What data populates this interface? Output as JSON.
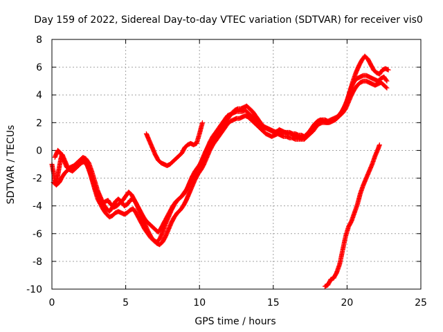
{
  "chart_data": {
    "type": "scatter",
    "title": "Day 159 of 2022, Sidereal Day-to-day VTEC variation (SDTVAR) for receiver vis0",
    "xlabel": "GPS time / hours",
    "ylabel": "SDTVAR / TECUs",
    "xlim": [
      0,
      25
    ],
    "ylim": [
      -10,
      8
    ],
    "x_ticks": [
      "0",
      "5",
      "10",
      "15",
      "20",
      "25"
    ],
    "y_ticks": [
      "-10",
      "-8",
      "-6",
      "-4",
      "-2",
      "0",
      "2",
      "4",
      "6",
      "8"
    ],
    "grid": true,
    "marker": "+",
    "color": "#ff0000",
    "series": [
      {
        "x": [
          0.0,
          0.1,
          0.2,
          0.3,
          0.4,
          0.5,
          0.6,
          0.7,
          0.9,
          1.1,
          1.3,
          1.5,
          1.7,
          1.9,
          2.1,
          2.3,
          2.5,
          2.7,
          2.9,
          3.1,
          3.3,
          3.5,
          3.7,
          3.9,
          4.1,
          4.3,
          4.5,
          4.7,
          4.9,
          5.1,
          5.3,
          5.5,
          5.7,
          5.9,
          6.1,
          6.3,
          6.5,
          6.7,
          6.9,
          7.1,
          7.3,
          7.5,
          7.7,
          7.9,
          8.1,
          8.3,
          8.5,
          8.7,
          8.9,
          9.1,
          9.3,
          9.5,
          9.7,
          9.9,
          10.1,
          10.3,
          10.5,
          10.7,
          10.9,
          11.1,
          11.3,
          11.5,
          11.7,
          11.9,
          12.1,
          12.3,
          12.5,
          12.7,
          12.9,
          13.1,
          13.3,
          13.5,
          13.7,
          13.9,
          14.1,
          14.3,
          14.5,
          14.7,
          14.9,
          15.1,
          15.3,
          15.5,
          15.7,
          15.9,
          16.1,
          16.3,
          16.5,
          16.7,
          16.9,
          17.1,
          17.3,
          17.5,
          17.7,
          17.9,
          18.1,
          18.3,
          18.5,
          18.7,
          18.9,
          19.1,
          19.3,
          19.5,
          19.7,
          19.9,
          20.1,
          20.3,
          20.5,
          20.7,
          20.9,
          21.1,
          21.3,
          21.5,
          21.7,
          21.9,
          22.1,
          22.3,
          22.5,
          22.7
        ],
        "y": [
          -1.0,
          -1.5,
          -2.2,
          -2.4,
          -1.8,
          -1.2,
          -0.6,
          -0.3,
          -0.8,
          -1.3,
          -1.2,
          -1.1,
          -0.9,
          -0.7,
          -0.5,
          -0.6,
          -0.9,
          -1.5,
          -2.2,
          -2.9,
          -3.4,
          -3.9,
          -4.2,
          -4.4,
          -4.1,
          -3.7,
          -3.5,
          -3.7,
          -4.0,
          -3.9,
          -3.6,
          -3.5,
          -3.8,
          -4.3,
          -4.8,
          -5.3,
          -5.8,
          -6.2,
          -6.5,
          -6.6,
          -6.4,
          -5.9,
          -5.3,
          -4.8,
          -4.3,
          -3.9,
          -3.6,
          -3.4,
          -3.2,
          -2.9,
          -2.4,
          -1.9,
          -1.5,
          -1.2,
          -0.9,
          -0.5,
          0.1,
          0.6,
          1.0,
          1.3,
          1.6,
          1.9,
          2.2,
          2.5,
          2.6,
          2.7,
          2.8,
          2.8,
          2.8,
          2.9,
          2.7,
          2.5,
          2.3,
          2.1,
          1.9,
          1.7,
          1.6,
          1.5,
          1.4,
          1.3,
          1.4,
          1.4,
          1.3,
          1.3,
          1.3,
          1.2,
          1.2,
          1.1,
          1.1,
          1.0,
          1.2,
          1.4,
          1.7,
          2.0,
          2.1,
          2.2,
          2.2,
          2.1,
          2.2,
          2.3,
          2.4,
          2.6,
          2.9,
          3.3,
          3.9,
          4.6,
          5.0,
          5.2,
          5.3,
          5.4,
          5.4,
          5.3,
          5.2,
          5.1,
          5.0,
          5.2,
          5.3,
          5.0
        ]
      },
      {
        "x": [
          0.1,
          0.3,
          0.5,
          0.7,
          0.9,
          1.1,
          1.3,
          1.5,
          1.7,
          1.9,
          2.1,
          2.3,
          2.5,
          2.7,
          2.9,
          3.1,
          3.3,
          3.5,
          3.7,
          3.9,
          4.1,
          4.3,
          4.5,
          4.7,
          4.9,
          5.1,
          5.3,
          5.5,
          5.7,
          5.9,
          6.1,
          6.3,
          6.5,
          6.7,
          6.9,
          7.1,
          7.3,
          7.5,
          7.7,
          7.9,
          8.1,
          8.3,
          8.5,
          8.7,
          8.9,
          9.1,
          9.3,
          9.5,
          9.7,
          9.9,
          10.1,
          10.3,
          10.5,
          10.7,
          10.9,
          11.1,
          11.3,
          11.5,
          11.7,
          11.9,
          12.1,
          12.3,
          12.5,
          12.7,
          12.9,
          13.1,
          13.3,
          13.5,
          13.7,
          13.9,
          14.1,
          14.3,
          14.5,
          14.7,
          14.9,
          15.1,
          15.3,
          15.5,
          15.7,
          15.9,
          16.1,
          16.3,
          16.5,
          16.7,
          16.9,
          17.1,
          17.3,
          17.5,
          17.7,
          17.9,
          18.1,
          18.3,
          18.5,
          18.7,
          18.9,
          19.1,
          19.3,
          19.5,
          19.7,
          19.9,
          20.1,
          20.3,
          20.5,
          20.7,
          20.9,
          21.1,
          21.3,
          21.5,
          21.7,
          21.9,
          22.1,
          22.3,
          22.5,
          22.7
        ],
        "y": [
          -2.3,
          -2.5,
          -2.3,
          -1.9,
          -1.6,
          -1.4,
          -1.3,
          -1.2,
          -1.0,
          -0.8,
          -0.7,
          -0.9,
          -1.3,
          -2.0,
          -2.8,
          -3.5,
          -3.9,
          -4.3,
          -4.6,
          -4.8,
          -4.7,
          -4.5,
          -4.4,
          -4.5,
          -4.6,
          -4.5,
          -4.3,
          -4.2,
          -4.5,
          -4.9,
          -5.3,
          -5.7,
          -6.0,
          -6.3,
          -6.5,
          -6.7,
          -6.8,
          -6.6,
          -6.2,
          -5.7,
          -5.2,
          -4.8,
          -4.5,
          -4.3,
          -4.0,
          -3.6,
          -3.1,
          -2.6,
          -2.1,
          -1.7,
          -1.4,
          -1.0,
          -0.5,
          0.0,
          0.4,
          0.7,
          1.0,
          1.3,
          1.6,
          1.9,
          2.1,
          2.2,
          2.3,
          2.3,
          2.4,
          2.5,
          2.4,
          2.2,
          2.0,
          1.8,
          1.6,
          1.4,
          1.2,
          1.1,
          1.0,
          1.1,
          1.2,
          1.1,
          1.0,
          1.0,
          0.9,
          0.9,
          0.8,
          0.8,
          0.8,
          0.8,
          1.0,
          1.2,
          1.4,
          1.7,
          1.9,
          2.0,
          2.0,
          2.0,
          2.1,
          2.2,
          2.3,
          2.5,
          2.7,
          3.0,
          3.5,
          4.0,
          4.4,
          4.7,
          4.9,
          5.0,
          5.0,
          4.9,
          4.8,
          4.7,
          4.8,
          4.9,
          4.7,
          4.5
        ]
      },
      {
        "x": [
          0.2,
          0.4,
          0.6,
          0.8,
          1.0,
          1.2,
          1.4,
          1.6,
          1.8,
          2.0,
          2.2,
          2.4,
          2.6,
          2.8,
          3.0,
          3.2,
          3.4,
          3.6,
          3.8,
          4.0,
          4.2,
          4.4,
          4.6,
          4.8,
          5.0,
          5.2,
          5.4,
          5.6,
          5.8,
          6.0,
          6.2,
          6.4,
          6.6,
          6.8,
          7.0,
          7.2,
          7.4,
          7.6,
          7.8,
          8.0,
          8.2,
          8.4,
          8.6,
          8.8,
          9.0,
          9.2,
          9.4,
          9.6,
          9.8,
          10.0,
          10.2,
          10.4,
          10.6,
          10.8,
          11.0,
          11.2,
          11.4,
          11.6,
          11.8,
          12.0,
          12.2,
          12.4,
          12.6,
          12.8,
          13.0,
          13.2,
          13.4,
          13.6,
          13.8,
          14.0,
          14.2,
          14.4,
          14.6,
          14.8,
          15.0,
          15.2,
          15.4,
          15.6,
          15.8,
          16.0,
          16.2,
          16.4,
          16.6,
          16.8,
          17.0,
          17.2,
          17.4,
          17.6,
          17.8,
          18.0,
          18.2,
          18.4,
          18.6,
          18.8,
          19.0,
          19.2,
          19.4,
          19.6,
          19.8,
          20.0,
          20.2,
          20.4,
          20.6,
          20.8,
          21.0,
          21.2,
          21.4,
          21.6,
          21.8,
          22.0,
          22.2,
          22.4,
          22.6,
          22.8
        ],
        "y": [
          -0.5,
          0.0,
          -0.2,
          -0.7,
          -1.2,
          -1.4,
          -1.5,
          -1.3,
          -1.1,
          -0.9,
          -0.8,
          -1.1,
          -1.7,
          -2.4,
          -3.0,
          -3.5,
          -3.8,
          -3.7,
          -3.6,
          -3.9,
          -4.1,
          -4.0,
          -3.8,
          -3.6,
          -3.3,
          -3.0,
          -3.2,
          -3.6,
          -4.0,
          -4.4,
          -4.8,
          -5.1,
          -5.3,
          -5.5,
          -5.7,
          -5.9,
          -5.6,
          -5.2,
          -4.8,
          -4.4,
          -4.0,
          -3.7,
          -3.5,
          -3.3,
          -3.0,
          -2.7,
          -2.2,
          -1.8,
          -1.4,
          -1.1,
          -0.6,
          -0.1,
          0.3,
          0.6,
          0.9,
          1.2,
          1.5,
          1.8,
          2.1,
          2.4,
          2.7,
          2.9,
          3.0,
          3.0,
          3.1,
          3.2,
          3.0,
          2.8,
          2.5,
          2.2,
          1.9,
          1.7,
          1.6,
          1.5,
          1.4,
          1.3,
          1.5,
          1.4,
          1.3,
          1.2,
          1.2,
          1.1,
          1.0,
          0.9,
          0.9,
          1.0,
          1.3,
          1.6,
          1.9,
          2.1,
          2.2,
          2.1,
          2.0,
          2.0,
          2.1,
          2.2,
          2.4,
          2.7,
          3.1,
          3.6,
          4.3,
          5.0,
          5.6,
          6.1,
          6.5,
          6.8,
          6.6,
          6.2,
          5.8,
          5.6,
          5.5,
          5.8,
          5.9,
          5.8
        ]
      },
      {
        "x": [
          6.4,
          6.6,
          6.8,
          7.0,
          7.2,
          7.4,
          7.6,
          7.8,
          8.0,
          8.2,
          8.4,
          8.6,
          8.8,
          9.0,
          9.2,
          9.4,
          9.6,
          9.8,
          10.0,
          10.2
        ],
        "y": [
          1.2,
          0.7,
          0.2,
          -0.3,
          -0.7,
          -0.9,
          -1.0,
          -1.1,
          -1.0,
          -0.8,
          -0.6,
          -0.4,
          -0.2,
          0.2,
          0.4,
          0.5,
          0.4,
          0.5,
          1.2,
          2.0
        ]
      },
      {
        "x": [
          18.5,
          18.7,
          18.9,
          19.1,
          19.3,
          19.5,
          19.7,
          19.9,
          20.1,
          20.3,
          20.5,
          20.7,
          20.9,
          21.1,
          21.3,
          21.5,
          21.7,
          21.9,
          22.1,
          22.2
        ],
        "y": [
          -9.8,
          -9.7,
          -9.3,
          -9.2,
          -8.8,
          -8.2,
          -7.2,
          -6.2,
          -5.5,
          -5.1,
          -4.5,
          -3.9,
          -3.1,
          -2.5,
          -2.0,
          -1.5,
          -1.0,
          -0.4,
          0.1,
          0.4
        ]
      }
    ]
  }
}
